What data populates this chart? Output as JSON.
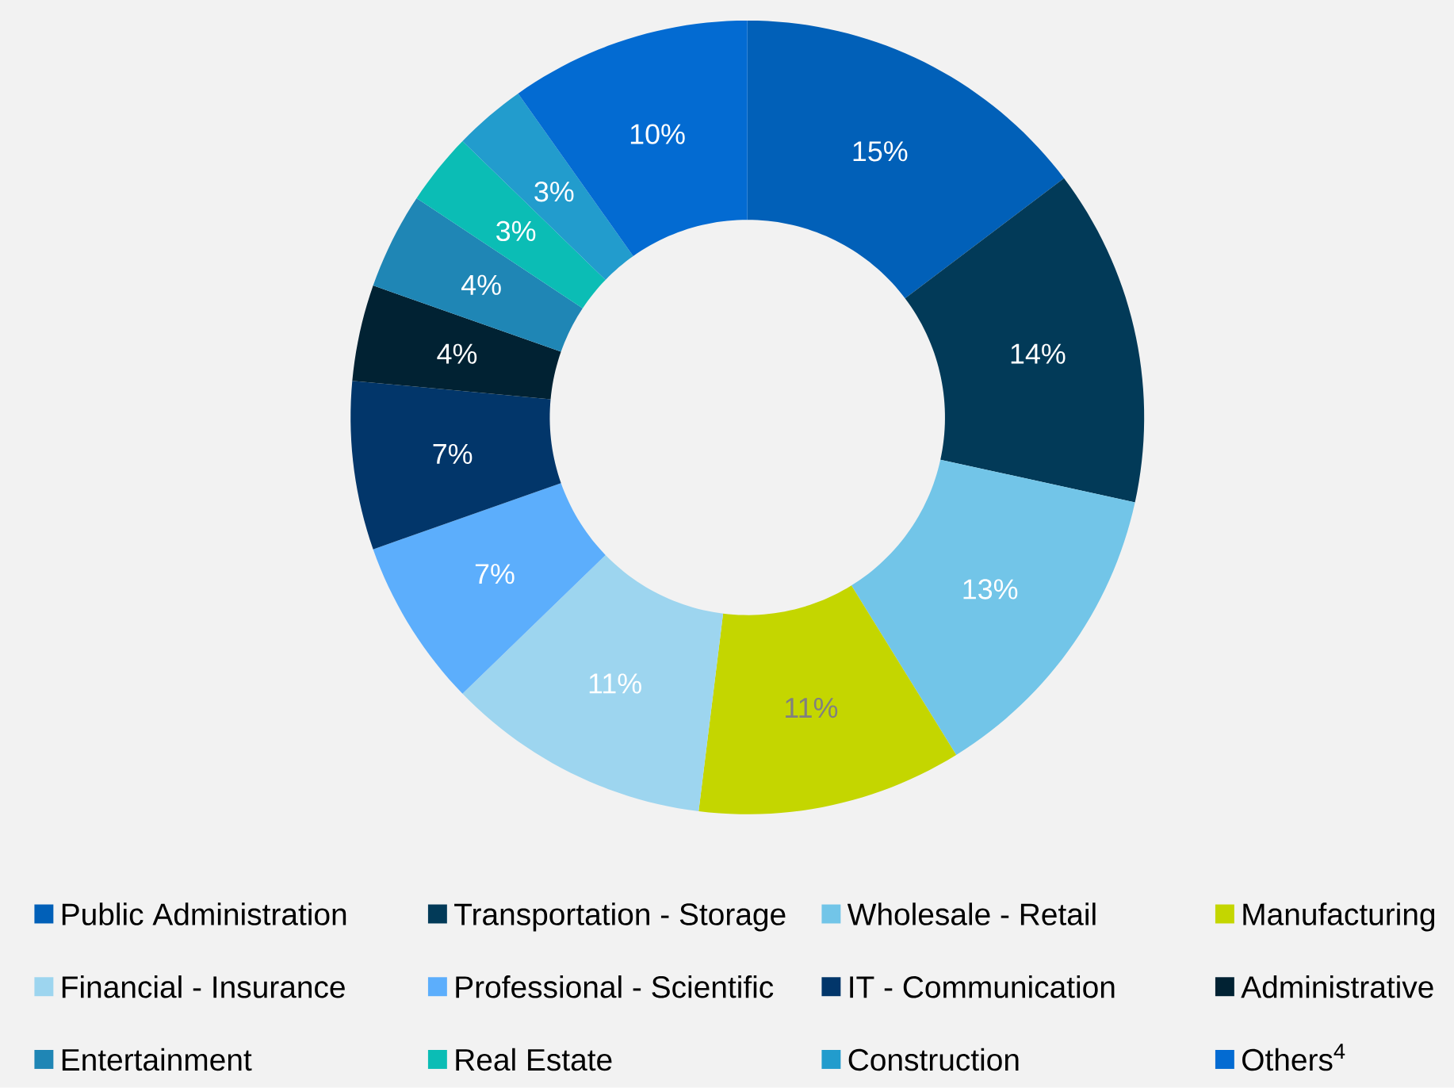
{
  "chart_data": {
    "type": "donut",
    "categories": [
      "Public Administration",
      "Transportation - Storage",
      "Wholesale - Retail",
      "Manufacturing",
      "Financial - Insurance",
      "Professional - Scientific",
      "IT - Communication",
      "Administrative",
      "Entertainment",
      "Real Estate",
      "Construction",
      "Others$^{4}$"
    ],
    "values": [
      15,
      14,
      13,
      11,
      11,
      7,
      7,
      4,
      4,
      3,
      3,
      10
    ],
    "value_labels": [
      "15%",
      "14%",
      "13%",
      "11%",
      "11%",
      "7%",
      "7%",
      "4%",
      "4%",
      "3%",
      "3%",
      "10%"
    ],
    "colors": [
      "#0160b8",
      "#023a58",
      "#72c5e8",
      "#c4d600",
      "#9dd5ef",
      "#5caefc",
      "#02366a",
      "#012233",
      "#1f86b5",
      "#0bbdb5",
      "#229ccd",
      "#036bd2"
    ],
    "legend": "bottom"
  }
}
